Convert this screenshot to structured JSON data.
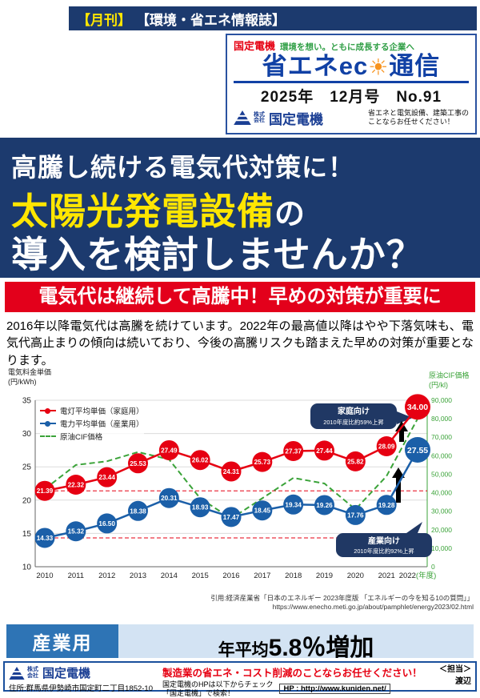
{
  "colors": {
    "navy": "#1c3a6e",
    "red": "#e60012",
    "alert_red": "#e3001b",
    "highlight_yellow": "#ffe600",
    "title_blue": "#1141a5",
    "green": "#3ba339",
    "industry_blue": "#2e74b5",
    "light_blue": "#d3e3f3"
  },
  "header": {
    "badge": {
      "monthly": "【月刊】",
      "magazine": "【環境・省エネ情報誌】"
    },
    "card": {
      "company": "国定電機",
      "slogan": "環境を想い。ともに成長する企業へ",
      "title_left": "省エネec",
      "sun_icon": "☀",
      "title_right": "通信",
      "issue": "2025年　12月号　No.91",
      "company_prefix": "株式会社",
      "tagline1": "省エネと電気設備、建築工事の",
      "tagline2": "ことならお任せください！"
    }
  },
  "hero": {
    "line1": "高騰し続ける電気代対策に！",
    "line2_highlight": "太陽光発電設備",
    "line2_suffix": "の",
    "line3": "導入を検討しませんか？"
  },
  "alert_bar": {
    "text": "電気代は継続して高騰中！早めの対策が重要に"
  },
  "body_text": "2016年以降電気代は高騰を続けています。2022年の最高値以降はやや下落気味も、電気代高止まりの傾向は続いており、今後の高騰リスクも踏まえた早めの対策が重要となります。",
  "chart_data": {
    "type": "line",
    "categories": [
      "2010",
      "2011",
      "2012",
      "2013",
      "2014",
      "2015",
      "2016",
      "2017",
      "2018",
      "2019",
      "2020",
      "2021",
      "2022(年度)"
    ],
    "series": [
      {
        "name": "電灯平均単価（家庭用）",
        "color": "#e60012",
        "axis": "left",
        "dashed": false,
        "values": [
          21.39,
          22.32,
          23.44,
          25.53,
          27.49,
          26.02,
          24.31,
          25.73,
          27.37,
          27.44,
          25.82,
          28.09,
          34.0
        ]
      },
      {
        "name": "電力平均単価（産業用）",
        "color": "#1b5fa8",
        "axis": "left",
        "dashed": false,
        "values": [
          14.33,
          15.32,
          16.5,
          18.38,
          20.31,
          18.93,
          17.47,
          18.45,
          19.34,
          19.26,
          17.76,
          19.28,
          27.55
        ]
      },
      {
        "name": "原油CIF価格",
        "color": "#3ba339",
        "axis": "right",
        "dashed": true,
        "values": [
          42000,
          55000,
          57000,
          62000,
          58000,
          37000,
          26000,
          37000,
          48000,
          45000,
          31000,
          49000,
          80000
        ]
      }
    ],
    "left_axis": {
      "label_line1": "電気料金単価",
      "label_line2": "(円/kWh)",
      "min": 10,
      "max": 35,
      "step": 5
    },
    "right_axis": {
      "label_line1": "原油CIF価格",
      "label_line2": "(円/kl)",
      "min": 0,
      "max": 90000,
      "step": 10000
    },
    "baselines": [
      21.39,
      14.33
    ],
    "grid": true,
    "legend_position": "top-left",
    "annotations": [
      {
        "title": "家庭向け",
        "text": "2010年度比約59%上昇"
      },
      {
        "title": "産業向け",
        "text": "2010年度比約92%上昇"
      }
    ]
  },
  "citation": {
    "line1": "引用:経済産業省「日本のエネルギー 2023年度版 「エネルギーの今を知る10の質問」」",
    "line2": "https://www.enecho.meti.go.jp/about/pamphlet/energy2023/02.html"
  },
  "stat_banner": {
    "label": "産業用",
    "prefix": "年平均",
    "value": "5.8％増加"
  },
  "footer": {
    "company_prefix": "株式会社",
    "company": "国定電機",
    "address": "住所:群馬県伊勢崎市国定町二丁目1852-10",
    "headline": "製造業の省エネ・コスト削減のことならお任せください！",
    "hp_line1": "国定電機のHPは以下からチェック",
    "hp_line2": "「国定電機」で検索！",
    "hp_url": "HP : http://www.kuniden.net/",
    "contact_label": "＜担当＞",
    "contact_name": "渡辺"
  }
}
